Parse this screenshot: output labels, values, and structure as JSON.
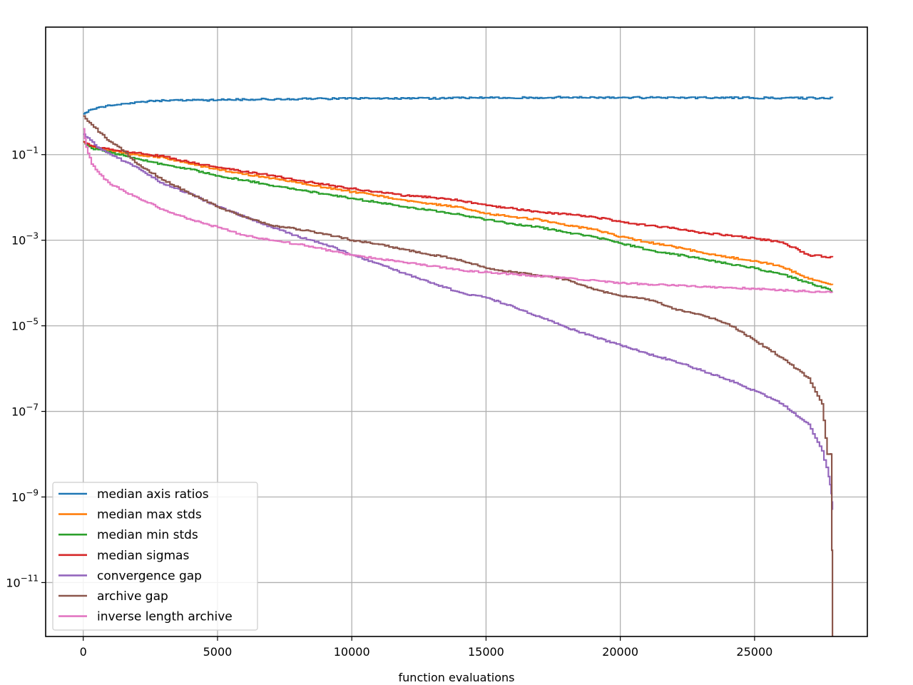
{
  "chart_data": {
    "type": "line",
    "title": "",
    "xlabel": "function evaluations",
    "ylabel": "",
    "yscale": "log",
    "grid": true,
    "legend_placement": "lower-left",
    "xlim": [
      -1400,
      29200
    ],
    "ylim_exp": [
      -12.26,
      1.98
    ],
    "x_ticks": [
      {
        "value": 0,
        "label": "0"
      },
      {
        "value": 5000,
        "label": "5000"
      },
      {
        "value": 10000,
        "label": "10000"
      },
      {
        "value": 15000,
        "label": "15000"
      },
      {
        "value": 20000,
        "label": "20000"
      },
      {
        "value": 25000,
        "label": "25000"
      }
    ],
    "y_ticks": [
      {
        "value": 0.1,
        "base": "10",
        "exp": "−1"
      },
      {
        "value": 0.001,
        "base": "10",
        "exp": "−3"
      },
      {
        "value": 1e-05,
        "base": "10",
        "exp": "−5"
      },
      {
        "value": 1e-07,
        "base": "10",
        "exp": "−7"
      },
      {
        "value": 1e-09,
        "base": "10",
        "exp": "−9"
      },
      {
        "value": 1e-11,
        "base": "10",
        "exp": "−11"
      }
    ],
    "series": [
      {
        "name": "median axis ratios",
        "color": "#1f77b4",
        "x": [
          0,
          200,
          500,
          1000,
          1500,
          2000,
          3000,
          4000,
          5000,
          6000,
          8000,
          10000,
          12000,
          14000,
          15000,
          17000,
          18000,
          20000,
          22000,
          24000,
          26000,
          27900
        ],
        "y": [
          0.9,
          1.1,
          1.25,
          1.4,
          1.55,
          1.7,
          1.85,
          1.85,
          1.9,
          1.95,
          2.0,
          2.05,
          2.05,
          2.1,
          2.15,
          2.15,
          2.2,
          2.15,
          2.15,
          2.15,
          2.1,
          2.1
        ]
      },
      {
        "name": "median max stds",
        "color": "#ff7f0e",
        "x": [
          0,
          300,
          800,
          1500,
          2000,
          3000,
          4000,
          5000,
          6000,
          7000,
          8000,
          9000,
          10000,
          12000,
          13000,
          14000,
          15000,
          16000,
          17000,
          18000,
          19000,
          20000,
          21000,
          22000,
          23000,
          24000,
          25000,
          26000,
          27000,
          27900
        ],
        "y": [
          0.2,
          0.15,
          0.13,
          0.11,
          0.1,
          0.085,
          0.06,
          0.045,
          0.035,
          0.028,
          0.022,
          0.017,
          0.0135,
          0.0085,
          0.007,
          0.006,
          0.0042,
          0.0035,
          0.003,
          0.0022,
          0.0018,
          0.0012,
          0.0009,
          0.0007,
          0.00052,
          0.0004,
          0.00033,
          0.00024,
          0.000125,
          9e-05
        ]
      },
      {
        "name": "median min stds",
        "color": "#2ca02c",
        "x": [
          0,
          300,
          800,
          1500,
          2000,
          3000,
          4000,
          5000,
          6000,
          7000,
          8000,
          9000,
          10000,
          12000,
          13000,
          14000,
          15000,
          16000,
          17000,
          18000,
          19000,
          20000,
          21000,
          22000,
          23000,
          24000,
          25000,
          26000,
          27000,
          27900
        ],
        "y": [
          0.2,
          0.14,
          0.12,
          0.095,
          0.08,
          0.058,
          0.045,
          0.032,
          0.025,
          0.019,
          0.015,
          0.012,
          0.0095,
          0.006,
          0.005,
          0.004,
          0.003,
          0.0024,
          0.002,
          0.0015,
          0.0012,
          0.00085,
          0.0006,
          0.00047,
          0.00037,
          0.00028,
          0.00022,
          0.00016,
          0.0001,
          6.5e-05
        ]
      },
      {
        "name": "median sigmas",
        "color": "#d62728",
        "x": [
          0,
          300,
          800,
          1500,
          2000,
          3000,
          4000,
          5000,
          6000,
          7000,
          8000,
          9000,
          10000,
          12000,
          13000,
          14000,
          15000,
          16000,
          17000,
          18000,
          19000,
          20000,
          21000,
          22000,
          23000,
          24000,
          25000,
          26000,
          27000,
          27900
        ],
        "y": [
          0.2,
          0.16,
          0.14,
          0.12,
          0.11,
          0.09,
          0.065,
          0.05,
          0.04,
          0.033,
          0.025,
          0.02,
          0.016,
          0.011,
          0.01,
          0.0085,
          0.0065,
          0.0055,
          0.0045,
          0.004,
          0.0035,
          0.0027,
          0.0022,
          0.0019,
          0.0015,
          0.0013,
          0.0011,
          0.0009,
          0.00045,
          0.0004
        ]
      },
      {
        "name": "convergence gap",
        "color": "#9467bd",
        "x": [
          0,
          500,
          1000,
          1500,
          2000,
          3000,
          4000,
          5000,
          6000,
          7000,
          8000,
          9000,
          10000,
          11000,
          12000,
          13000,
          14000,
          15000,
          16000,
          17000,
          18000,
          19000,
          20000,
          21000,
          22000,
          23000,
          24000,
          25000,
          26000,
          27000,
          27500,
          27750,
          27850,
          27900
        ],
        "y": [
          0.3,
          0.15,
          0.1,
          0.07,
          0.05,
          0.02,
          0.012,
          0.006,
          0.0035,
          0.002,
          0.0012,
          0.0008,
          0.00045,
          0.00028,
          0.00016,
          0.0001,
          6e-05,
          4.5e-05,
          2.8e-05,
          1.6e-05,
          9e-06,
          5.5e-06,
          3.5e-06,
          2.2e-06,
          1.5e-06,
          9e-07,
          5.5e-07,
          3e-07,
          1.5e-07,
          5e-08,
          1.2e-08,
          3e-09,
          1.2e-09,
          5e-10
        ]
      },
      {
        "name": "archive gap",
        "color": "#8c564b",
        "x": [
          0,
          300,
          800,
          1500,
          2000,
          3000,
          4000,
          5000,
          6000,
          7000,
          8000,
          9000,
          10000,
          11000,
          12000,
          13000,
          14000,
          15000,
          16000,
          17000,
          18000,
          19000,
          20000,
          21000,
          22000,
          23000,
          24000,
          25000,
          26000,
          27000,
          27500,
          27700,
          27800,
          27850,
          27900
        ],
        "y": [
          0.8,
          0.5,
          0.25,
          0.12,
          0.06,
          0.025,
          0.012,
          0.006,
          0.0035,
          0.0022,
          0.0018,
          0.0014,
          0.001,
          0.0008,
          0.0006,
          0.00045,
          0.00035,
          0.00022,
          0.00018,
          0.00015,
          0.00012,
          7e-05,
          5e-05,
          4.2e-05,
          2.5e-05,
          1.8e-05,
          1.1e-05,
          4.5e-06,
          1.8e-06,
          6e-07,
          1.5e-07,
          1e-08,
          1e-08,
          1e-08,
          3e-13
        ]
      },
      {
        "name": "inverse length archive",
        "color": "#e377c2",
        "x": [
          0,
          100,
          300,
          600,
          1000,
          1500,
          2000,
          3000,
          4000,
          5000,
          6000,
          7000,
          8000,
          10000,
          12000,
          14000,
          16000,
          18000,
          20000,
          22000,
          24000,
          26000,
          27900
        ],
        "y": [
          0.4,
          0.15,
          0.06,
          0.035,
          0.02,
          0.014,
          0.01,
          0.005,
          0.003,
          0.002,
          0.0013,
          0.001,
          0.0008,
          0.00045,
          0.0003,
          0.0002,
          0.00016,
          0.00013,
          0.0001,
          8.8e-05,
          7.8e-05,
          6.8e-05,
          6e-05
        ]
      }
    ]
  }
}
